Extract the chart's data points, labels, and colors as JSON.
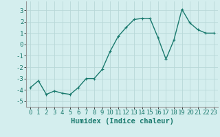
{
  "x": [
    0,
    1,
    2,
    3,
    4,
    5,
    6,
    7,
    8,
    9,
    10,
    11,
    12,
    13,
    14,
    15,
    16,
    17,
    18,
    19,
    20,
    21,
    22,
    23
  ],
  "y": [
    -3.8,
    -3.2,
    -4.4,
    -4.1,
    -4.3,
    -4.4,
    -3.8,
    -3.0,
    -3.0,
    -2.2,
    -0.6,
    0.7,
    1.5,
    2.2,
    2.3,
    2.3,
    0.6,
    -1.3,
    0.4,
    3.1,
    1.9,
    1.3,
    1.0,
    1.0
  ],
  "line_color": "#1a7a6e",
  "marker": "+",
  "marker_size": 3,
  "bg_color": "#d4eeee",
  "grid_color": "#b8d8d8",
  "xlabel": "Humidex (Indice chaleur)",
  "xlim": [
    -0.5,
    23.5
  ],
  "ylim": [
    -5.5,
    3.8
  ],
  "yticks": [
    -5,
    -4,
    -3,
    -2,
    -1,
    0,
    1,
    2,
    3
  ],
  "xticks": [
    0,
    1,
    2,
    3,
    4,
    5,
    6,
    7,
    8,
    9,
    10,
    11,
    12,
    13,
    14,
    15,
    16,
    17,
    18,
    19,
    20,
    21,
    22,
    23
  ],
  "tick_fontsize": 6.5,
  "label_fontsize": 7.5,
  "line_width": 1.0,
  "marker_edge_width": 0.8
}
